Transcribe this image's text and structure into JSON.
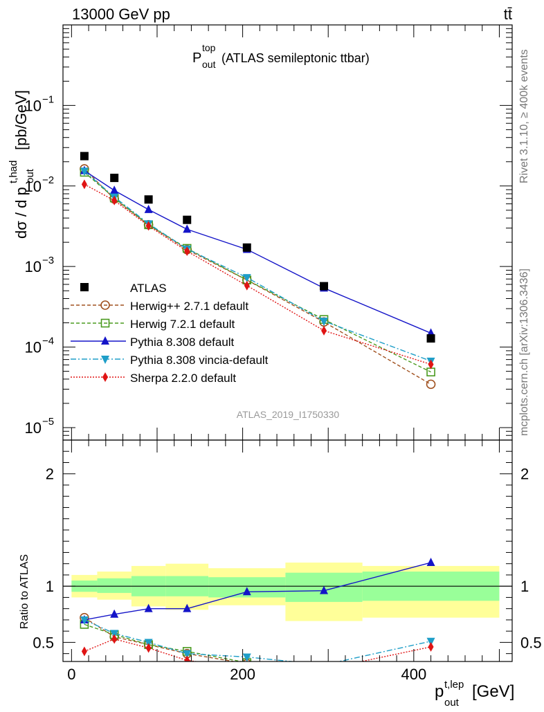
{
  "header": {
    "left": "13000 GeV pp",
    "right": "tt̄"
  },
  "title": {
    "main": "P",
    "sup": "top",
    "sub": "out",
    "rest": "(ATLAS semileptonic ttbar)"
  },
  "side_text": {
    "rivet": "Rivet 3.1.10, ≥ 400k events",
    "mcplots": "mcplots.cern.ch [arXiv:1306.3436]"
  },
  "watermark": "ATLAS_2019_I1750330",
  "axes": {
    "ylabel_main": {
      "prefix": "dσ / d p",
      "sup": "t,had",
      "sub": "out",
      "suffix": "[pb/GeV]"
    },
    "ylabel_ratio": "Ratio to ATLAS",
    "xlabel": {
      "prefix": "p",
      "sup": "t,lep",
      "sub": "out",
      "suffix": "[GeV]"
    }
  },
  "chart_data": {
    "type": "scatter",
    "x_range": [
      -10,
      515
    ],
    "x_ticks": [
      0,
      200,
      400
    ],
    "x_tick_labels": [
      "0",
      "200",
      "400"
    ],
    "main": {
      "y_log": true,
      "y_range": [
        7e-06,
        1.0
      ],
      "y_ticks": [
        1e-05,
        0.0001,
        0.001,
        0.01,
        0.1
      ],
      "y_tick_labels": [
        {
          "base": "10",
          "exp": "−5"
        },
        {
          "base": "10",
          "exp": "−4"
        },
        {
          "base": "10",
          "exp": "−3"
        },
        {
          "base": "10",
          "exp": "−2"
        },
        {
          "base": "10",
          "exp": "−1"
        }
      ]
    },
    "ratio": {
      "y_range": [
        0.33,
        2.3
      ],
      "y_ticks": [
        0.5,
        1,
        2
      ],
      "y_tick_labels": [
        "0.5",
        "1",
        "2"
      ],
      "band_edges": [
        0,
        30,
        70,
        110,
        160,
        250,
        340,
        500
      ],
      "band_inner": [
        [
          0.95,
          1.05
        ],
        [
          0.94,
          1.07
        ],
        [
          0.91,
          1.09
        ],
        [
          0.91,
          1.09
        ],
        [
          0.9,
          1.08
        ],
        [
          0.86,
          1.12
        ],
        [
          0.87,
          1.13
        ]
      ],
      "band_outer": [
        [
          0.9,
          1.1
        ],
        [
          0.88,
          1.13
        ],
        [
          0.82,
          1.18
        ],
        [
          0.79,
          1.2
        ],
        [
          0.83,
          1.16
        ],
        [
          0.69,
          1.21
        ],
        [
          0.72,
          1.18
        ]
      ]
    },
    "x": [
      15,
      50,
      90,
      135,
      205,
      295,
      420
    ],
    "data": {
      "name": "ATLAS",
      "y": [
        0.0235,
        0.0126,
        0.0068,
        0.0038,
        0.00172,
        0.00057,
        0.000128
      ]
    },
    "series": [
      {
        "name": "Herwig++ 2.7.1 default",
        "color": "#a0501e",
        "dash": "5,3",
        "marker": "circle-open",
        "y": [
          0.0163,
          0.0069,
          0.0033,
          0.00162,
          0.00068,
          0.000205,
          3.45e-05
        ],
        "ratio": [
          0.72,
          0.55,
          0.48,
          0.4,
          0.31,
          0.26,
          0.26
        ]
      },
      {
        "name": "Herwig 7.2.1 default",
        "color": "#4a9a1e",
        "dash": "5,3",
        "marker": "square-open",
        "y": [
          0.0148,
          0.0071,
          0.0033,
          0.00168,
          0.00068,
          0.00022,
          4.9e-05
        ],
        "ratio": [
          0.66,
          0.57,
          0.48,
          0.42,
          0.32,
          0.26,
          0.24
        ]
      },
      {
        "name": "Pythia 8.308 default",
        "color": "#1414c8",
        "dash": "",
        "marker": "triangle-up",
        "y": [
          0.0155,
          0.0088,
          0.0051,
          0.0029,
          0.00163,
          0.00054,
          0.000149
        ],
        "ratio": [
          0.7,
          0.75,
          0.8,
          0.8,
          0.95,
          0.96,
          1.21
        ]
      },
      {
        "name": "Pythia 8.308 vincia-default",
        "color": "#1e9ec8",
        "dash": "8,3,2,3",
        "marker": "triangle-down",
        "y": [
          0.0153,
          0.0073,
          0.0034,
          0.00165,
          0.00073,
          0.00021,
          6.7e-05
        ],
        "ratio": [
          0.7,
          0.58,
          0.5,
          0.4,
          0.37,
          0.3,
          0.51
        ]
      },
      {
        "name": "Sherpa 2.2.0 default",
        "color": "#e01414",
        "dash": "2,2",
        "marker": "diamond",
        "y": [
          0.0105,
          0.0066,
          0.0032,
          0.00155,
          0.00058,
          0.00016,
          6.1e-05
        ],
        "ratio": [
          0.42,
          0.53,
          0.45,
          0.34,
          0.27,
          0.26,
          0.46
        ]
      }
    ]
  }
}
